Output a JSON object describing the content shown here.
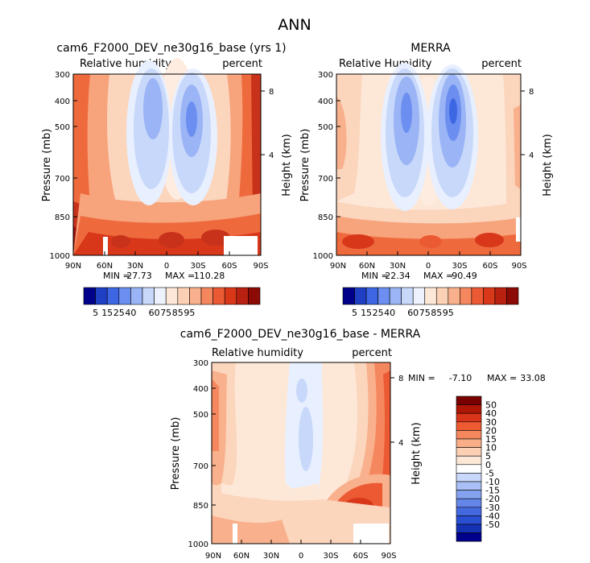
{
  "page_title": "ANN",
  "chart_data": [
    {
      "type": "heatmap",
      "id": "model",
      "title": "cam6_F2000_DEV_ne30g16_base (yrs 1)",
      "field_label": "Relative humidity",
      "units_label": "percent",
      "ylabel": "Pressure (mb)",
      "ylabel_right": "Height (km)",
      "x_ticks": [
        "90N",
        "60N",
        "30N",
        "0",
        "30S",
        "60S",
        "90S"
      ],
      "y_ticks": [
        "300",
        "400",
        "500",
        "700",
        "850",
        "1000"
      ],
      "y_tick_values": [
        300,
        400,
        500,
        700,
        850,
        1000
      ],
      "height_ticks": [
        "8",
        "4"
      ],
      "height_tick_values_km": [
        8,
        4
      ],
      "ylim": [
        1000,
        300
      ],
      "x_lat_range": [
        90,
        -90
      ],
      "min_label": "MIN =",
      "min_value": "27.73",
      "max_label": "MAX =",
      "max_value": "110.28"
    },
    {
      "type": "heatmap",
      "id": "merra",
      "title": "MERRA",
      "field_label": "Relative Humidity",
      "units_label": "percent",
      "ylabel": "Pressure (mb)",
      "ylabel_right": "Height (km)",
      "x_ticks": [
        "90N",
        "60N",
        "30N",
        "0",
        "30S",
        "60S",
        "90S"
      ],
      "y_ticks": [
        "300",
        "400",
        "500",
        "700",
        "850",
        "1000"
      ],
      "y_tick_values": [
        300,
        400,
        500,
        700,
        850,
        1000
      ],
      "height_ticks": [
        "8",
        "4"
      ],
      "height_tick_values_km": [
        8,
        4
      ],
      "ylim": [
        1000,
        300
      ],
      "x_lat_range": [
        90,
        -90
      ],
      "min_label": "MIN =",
      "min_value": "22.34",
      "max_label": "MAX =",
      "max_value": "90.49"
    },
    {
      "type": "heatmap",
      "id": "diff",
      "title": "cam6_F2000_DEV_ne30g16_base - MERRA",
      "field_label": "Relative humidity",
      "units_label": "percent",
      "ylabel": "Pressure (mb)",
      "ylabel_right": "Height (km)",
      "x_ticks": [
        "90N",
        "60N",
        "30N",
        "0",
        "30S",
        "60S",
        "90S"
      ],
      "y_ticks": [
        "300",
        "400",
        "500",
        "700",
        "850",
        "1000"
      ],
      "y_tick_values": [
        300,
        400,
        500,
        700,
        850,
        1000
      ],
      "height_ticks": [
        "8",
        "4"
      ],
      "height_tick_values_km": [
        8,
        4
      ],
      "ylim": [
        1000,
        300
      ],
      "x_lat_range": [
        90,
        -90
      ],
      "min_label": "MIN =",
      "min_value": "-7.10",
      "max_label": "MAX =",
      "max_value": "33.08"
    }
  ],
  "colorbars": {
    "abs": {
      "colors": [
        "#00008b",
        "#1f3fc4",
        "#3d66e3",
        "#6b8ef0",
        "#9ab4f5",
        "#c8d8fa",
        "#edf2fd",
        "#fde8d8",
        "#fcd0b4",
        "#f9b08c",
        "#f5875e",
        "#ec5a33",
        "#d8371a",
        "#b8200f",
        "#8b0a05"
      ],
      "labels": [
        "5",
        "15",
        "25",
        "40",
        "60",
        "75",
        "85",
        "95"
      ],
      "label_boundaries": [
        1,
        2,
        3,
        4,
        6,
        7,
        8,
        9
      ]
    },
    "diff": {
      "colors": [
        "#7a0000",
        "#b01606",
        "#d8351a",
        "#ee5b33",
        "#f5875e",
        "#f9ae88",
        "#fcd0b4",
        "#fde8d8",
        "#ffffff",
        "#c8d8fa",
        "#a8c0f5",
        "#85a2f0",
        "#6486e8",
        "#4469de",
        "#2a4fd2",
        "#1532b4",
        "#00008b"
      ],
      "labels": [
        "50",
        "40",
        "30",
        "20",
        "15",
        "10",
        "5",
        "0",
        "-5",
        "-10",
        "-15",
        "-20",
        "-30",
        "-40",
        "-50"
      ]
    }
  }
}
